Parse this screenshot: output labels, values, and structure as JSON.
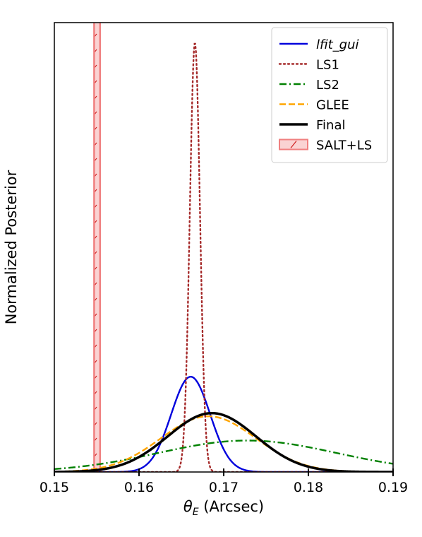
{
  "chart_data": {
    "type": "line",
    "xlabel_symbol": "θ",
    "xlabel_sub": "E",
    "xlabel_rest": " (Arcsec)",
    "ylabel": "Normalized Posterior",
    "xlim": [
      0.15,
      0.19
    ],
    "ylim": [
      0,
      1.0
    ],
    "xticks": [
      0.15,
      0.16,
      0.17,
      0.18,
      0.19
    ],
    "xtick_labels": [
      "0.15",
      "0.16",
      "0.17",
      "0.18",
      "0.19"
    ],
    "grid": false,
    "legend_position": "top-right",
    "series": [
      {
        "name": "lfit_gui",
        "kind": "gaussian",
        "mean": 0.1661,
        "sigma": 0.0023,
        "peak": 0.212,
        "color": "#0000dd",
        "style": "solid",
        "italic": true
      },
      {
        "name": "LS1",
        "kind": "gaussian",
        "mean": 0.1666,
        "sigma": 0.0006,
        "peak": 0.955,
        "color": "#a52a2a",
        "style": "dotted"
      },
      {
        "name": "LS2",
        "kind": "gaussian",
        "mean": 0.1728,
        "sigma": 0.0105,
        "peak": 0.07,
        "color": "#008000",
        "style": "dashdot"
      },
      {
        "name": "GLEE",
        "kind": "gaussian",
        "mean": 0.1682,
        "sigma": 0.0056,
        "peak": 0.124,
        "color": "#ffa500",
        "style": "dashed"
      },
      {
        "name": "Final",
        "kind": "gaussian",
        "mean": 0.1686,
        "sigma": 0.0052,
        "peak": 0.131,
        "color": "#000000",
        "style": "solid",
        "bold": true
      }
    ],
    "band": {
      "name": "SALT+LS",
      "x0": 0.1547,
      "x1": 0.1554,
      "color": "#f08080",
      "hatch": "/"
    }
  }
}
